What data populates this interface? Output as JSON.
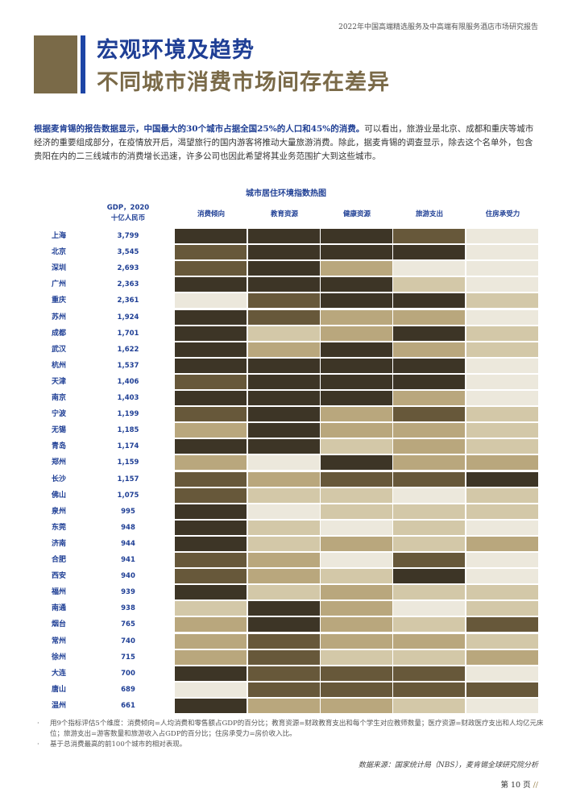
{
  "header": {
    "report_title": "2022年中国高端精选服务及中高端有限服务酒店市场研究报告"
  },
  "title": {
    "line1": "宏观环境及趋势",
    "line2": "不同城市消费市场间存在差异"
  },
  "intro": {
    "highlight": "根据麦肯锡的报告数据显示，中国最大的30个城市占据全国25%的人口和45%的消费。",
    "rest": "可以看出，旅游业是北京、成都和重庆等城市经济的重要组成部分，在疫情放开后，渴望旅行的国内游客将推动大量旅游消费。除此，据麦肯锡的调查显示，除去这个名单外，包含贵阳在内的二三线城市的消费增长迅速，许多公司也因此希望将其业务范围扩大到这些城市。"
  },
  "colors": {
    "level_1": "#ece8dc",
    "level_2": "#d3c8a8",
    "level_3": "#b9a77d",
    "level_4": "#67583a",
    "level_5": "#3d3526"
  },
  "chart_data": {
    "type": "heatmap",
    "title": "城市居住环境指数热图",
    "gdp_header_line1": "GDP，2020",
    "gdp_header_line2": "十亿人民币",
    "columns": [
      "消费倾向",
      "教育资源",
      "健康资源",
      "旅游支出",
      "住房承受力"
    ],
    "rows": [
      {
        "city": "上海",
        "gdp": "3,799",
        "levels": [
          5,
          5,
          5,
          4,
          1
        ]
      },
      {
        "city": "北京",
        "gdp": "3,545",
        "levels": [
          4,
          5,
          5,
          5,
          1
        ]
      },
      {
        "city": "深圳",
        "gdp": "2,693",
        "levels": [
          4,
          5,
          3,
          1,
          1
        ]
      },
      {
        "city": "广州",
        "gdp": "2,363",
        "levels": [
          5,
          5,
          5,
          2,
          1
        ]
      },
      {
        "city": "重庆",
        "gdp": "2,361",
        "levels": [
          1,
          4,
          5,
          5,
          2
        ]
      },
      {
        "city": "苏州",
        "gdp": "1,924",
        "levels": [
          5,
          4,
          3,
          3,
          1
        ]
      },
      {
        "city": "成都",
        "gdp": "1,701",
        "levels": [
          5,
          2,
          3,
          5,
          2
        ]
      },
      {
        "city": "武汉",
        "gdp": "1,622",
        "levels": [
          5,
          3,
          5,
          3,
          2
        ]
      },
      {
        "city": "杭州",
        "gdp": "1,537",
        "levels": [
          5,
          5,
          5,
          5,
          1
        ]
      },
      {
        "city": "天津",
        "gdp": "1,406",
        "levels": [
          4,
          5,
          5,
          5,
          1
        ]
      },
      {
        "city": "南京",
        "gdp": "1,403",
        "levels": [
          5,
          5,
          5,
          3,
          1
        ]
      },
      {
        "city": "宁波",
        "gdp": "1,199",
        "levels": [
          4,
          5,
          3,
          4,
          2
        ]
      },
      {
        "city": "无锡",
        "gdp": "1,185",
        "levels": [
          3,
          5,
          3,
          3,
          2
        ]
      },
      {
        "city": "青岛",
        "gdp": "1,174",
        "levels": [
          5,
          5,
          2,
          3,
          2
        ]
      },
      {
        "city": "郑州",
        "gdp": "1,159",
        "levels": [
          3,
          1,
          5,
          3,
          3
        ]
      },
      {
        "city": "长沙",
        "gdp": "1,157",
        "levels": [
          4,
          3,
          4,
          4,
          5
        ]
      },
      {
        "city": "佛山",
        "gdp": "1,075",
        "levels": [
          4,
          2,
          2,
          1,
          2
        ]
      },
      {
        "city": "泉州",
        "gdp": "995",
        "levels": [
          5,
          1,
          2,
          2,
          2
        ]
      },
      {
        "city": "东莞",
        "gdp": "948",
        "levels": [
          5,
          2,
          1,
          2,
          1
        ]
      },
      {
        "city": "济南",
        "gdp": "944",
        "levels": [
          5,
          2,
          3,
          2,
          3
        ]
      },
      {
        "city": "合肥",
        "gdp": "941",
        "levels": [
          4,
          3,
          1,
          4,
          1
        ]
      },
      {
        "city": "西安",
        "gdp": "940",
        "levels": [
          4,
          3,
          2,
          5,
          1
        ]
      },
      {
        "city": "福州",
        "gdp": "939",
        "levels": [
          5,
          2,
          3,
          2,
          2
        ]
      },
      {
        "city": "南通",
        "gdp": "938",
        "levels": [
          2,
          5,
          3,
          1,
          2
        ]
      },
      {
        "city": "烟台",
        "gdp": "765",
        "levels": [
          3,
          5,
          3,
          2,
          4
        ]
      },
      {
        "city": "常州",
        "gdp": "740",
        "levels": [
          3,
          4,
          3,
          3,
          2
        ]
      },
      {
        "city": "徐州",
        "gdp": "715",
        "levels": [
          3,
          4,
          2,
          2,
          3
        ]
      },
      {
        "city": "大连",
        "gdp": "700",
        "levels": [
          5,
          4,
          4,
          4,
          1
        ]
      },
      {
        "city": "唐山",
        "gdp": "689",
        "levels": [
          1,
          4,
          4,
          4,
          4
        ]
      },
      {
        "city": "温州",
        "gdp": "661",
        "levels": [
          5,
          3,
          3,
          2,
          1
        ]
      }
    ]
  },
  "footnotes": [
    "用9个指标评估5个维度：消费倾向=人均消费和零售额占GDP的百分比；教育资源=财政教育支出和每个学生对应教师数量；医疗资源=财政医疗支出和人均亿元床位；旅游支出=游客数量和旅游收入占GDP的百分比；住房承受力=房价收入比。",
    "基于总消费最高的前100个城市的相对表现。"
  ],
  "source": "数据来源：国家统计局（NBS），麦肯锡全球研究院分析",
  "page": {
    "label": "第 10 页",
    "mark": "//"
  }
}
